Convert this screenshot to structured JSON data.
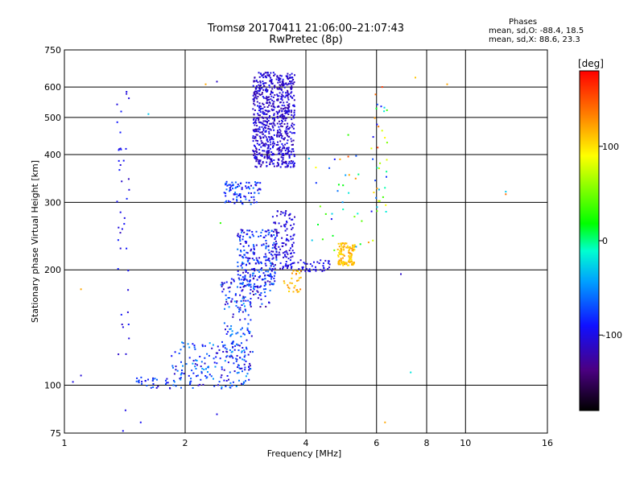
{
  "header": {
    "title": "Tromsø 20170411 21:06:00–21:07:43",
    "subtitle": "RwPretec (8p)"
  },
  "phases": {
    "heading": "Phases",
    "o_mode": "mean, sd,O: -88.4, 18.5",
    "x_mode": "mean, sd,X:  88.6, 23.3"
  },
  "chart_data": {
    "type": "scatter",
    "title": "Tromsø 20170411 21:06:00–21:07:43",
    "subtitle": "RwPretec (8p)",
    "xlabel": "Frequency [MHz]",
    "ylabel": "Stationary phase Virtual Height [km]",
    "x_scale": "log",
    "y_scale": "log",
    "xlim": [
      1,
      16
    ],
    "ylim": [
      75,
      750
    ],
    "x_ticks": [
      1,
      2,
      4,
      6,
      8,
      10,
      16
    ],
    "x_tick_labels": [
      "1",
      "2",
      "4",
      "6",
      "8",
      "10",
      "16"
    ],
    "y_ticks": [
      75,
      100,
      200,
      300,
      400,
      500,
      600,
      750
    ],
    "y_tick_labels": [
      "75",
      "100",
      "200",
      "300",
      "400",
      "500",
      "600",
      "750"
    ],
    "grid": true,
    "colorbar": {
      "label": "[deg]",
      "range": [
        -180,
        180
      ],
      "ticks": [
        -100,
        0,
        100
      ],
      "tick_labels": [
        "-100",
        "0",
        "100"
      ]
    },
    "clusters": [
      {
        "name_hint": "low-f 100 km",
        "f": [
          1.85,
          2.9
        ],
        "h": [
          98,
          130
        ],
        "phase": [
          -115,
          -40
        ],
        "n": 170
      },
      {
        "name_hint": "low-f 100 km tail",
        "f": [
          1.5,
          1.85
        ],
        "h": [
          98,
          105
        ],
        "phase": [
          -110,
          -60
        ],
        "n": 30
      },
      {
        "name_hint": "rise 130-170",
        "f": [
          2.5,
          2.95
        ],
        "h": [
          110,
          170
        ],
        "phase": [
          -120,
          -40
        ],
        "n": 90
      },
      {
        "name_hint": "band 160-190",
        "f": [
          2.45,
          3.3
        ],
        "h": [
          160,
          190
        ],
        "phase": [
          -130,
          -50
        ],
        "n": 90
      },
      {
        "name_hint": "E/F1 180-250",
        "f": [
          2.7,
          3.4
        ],
        "h": [
          180,
          255
        ],
        "phase": [
          -120,
          -55
        ],
        "n": 250
      },
      {
        "name_hint": "F1 200-280",
        "f": [
          3.3,
          3.75
        ],
        "h": [
          200,
          285
        ],
        "phase": [
          -120,
          -90
        ],
        "n": 120
      },
      {
        "name_hint": "cusp 300",
        "f": [
          2.5,
          3.1
        ],
        "h": [
          295,
          340
        ],
        "phase": [
          -110,
          -55
        ],
        "n": 90
      },
      {
        "name_hint": "F2 column A",
        "f": [
          2.95,
          3.35
        ],
        "h": [
          370,
          655
        ],
        "phase": [
          -125,
          -90
        ],
        "n": 420
      },
      {
        "name_hint": "F2 column B",
        "f": [
          3.38,
          3.75
        ],
        "h": [
          370,
          655
        ],
        "phase": [
          -125,
          -90
        ],
        "n": 330
      },
      {
        "name_hint": "spread 200-210",
        "f": [
          3.8,
          4.6
        ],
        "h": [
          198,
          212
        ],
        "phase": [
          -110,
          -90
        ],
        "n": 40
      },
      {
        "name_hint": "yellow patch",
        "f": [
          4.8,
          5.3
        ],
        "h": [
          205,
          235
        ],
        "phase": [
          95,
          130
        ],
        "n": 110
      },
      {
        "name_hint": "yellow low",
        "f": [
          3.5,
          3.9
        ],
        "h": [
          175,
          200
        ],
        "phase": [
          100,
          135
        ],
        "n": 30
      },
      {
        "name_hint": "vertical streak",
        "f": [
          1.35,
          1.45
        ],
        "h": [
          120,
          600
        ],
        "phase": [
          -115,
          -85
        ],
        "n": 40
      },
      {
        "name_hint": "scatter high",
        "f": [
          5.8,
          6.4
        ],
        "h": [
          280,
          600
        ],
        "phase": [
          -110,
          160
        ],
        "n": 35
      },
      {
        "name_hint": "scatter mid",
        "f": [
          4.0,
          6.2
        ],
        "h": [
          220,
          400
        ],
        "phase": [
          -110,
          150
        ],
        "n": 35
      }
    ],
    "points": [
      {
        "f": 1.05,
        "h": 102,
        "phase": -100
      },
      {
        "f": 1.1,
        "h": 106,
        "phase": -105
      },
      {
        "f": 1.1,
        "h": 178,
        "phase": 120
      },
      {
        "f": 1.4,
        "h": 76,
        "phase": -95
      },
      {
        "f": 1.42,
        "h": 86,
        "phase": -100
      },
      {
        "f": 1.44,
        "h": 155,
        "phase": -105
      },
      {
        "f": 1.55,
        "h": 80,
        "phase": -95
      },
      {
        "f": 1.62,
        "h": 510,
        "phase": -30
      },
      {
        "f": 2.25,
        "h": 610,
        "phase": 120
      },
      {
        "f": 2.4,
        "h": 620,
        "phase": -110
      },
      {
        "f": 2.4,
        "h": 84,
        "phase": -100
      },
      {
        "f": 2.45,
        "h": 265,
        "phase": 30
      },
      {
        "f": 5.1,
        "h": 450,
        "phase": 30
      },
      {
        "f": 5.1,
        "h": 395,
        "phase": 150
      },
      {
        "f": 6.2,
        "h": 600,
        "phase": 160
      },
      {
        "f": 6.3,
        "h": 80,
        "phase": 120
      },
      {
        "f": 6.9,
        "h": 195,
        "phase": -110
      },
      {
        "f": 7.3,
        "h": 108,
        "phase": -20
      },
      {
        "f": 7.5,
        "h": 635,
        "phase": 110
      },
      {
        "f": 9.0,
        "h": 610,
        "phase": 120
      },
      {
        "f": 12.6,
        "h": 320,
        "phase": -30
      },
      {
        "f": 12.6,
        "h": 315,
        "phase": 140
      }
    ]
  }
}
